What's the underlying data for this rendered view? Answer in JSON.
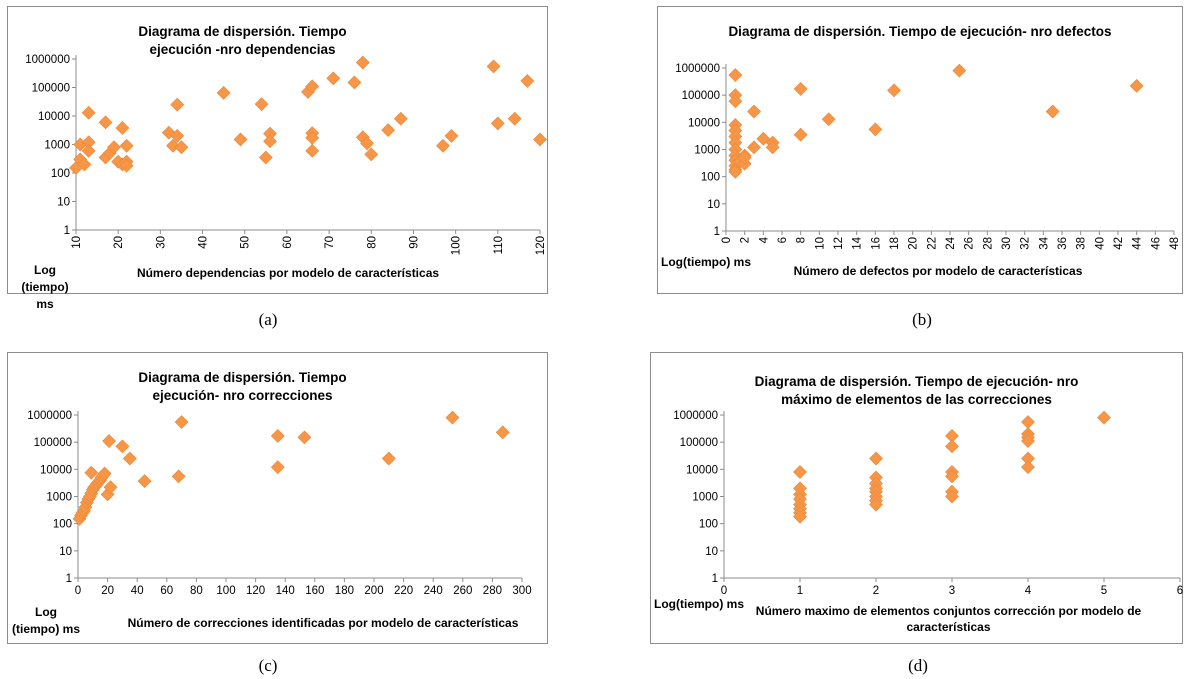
{
  "chart_data": [
    {
      "type": "scatter",
      "title": "Diagrama de dispersión. Tiempo ejecución -nro dependencias",
      "xlabel": "Número dependencias por modelo de características",
      "ylabel": "Log (tiempo) ms",
      "yscale": "log",
      "ylim": [
        1,
        1000000
      ],
      "xlim": [
        10,
        120
      ],
      "xticks": [
        "10",
        "20",
        "30",
        "40",
        "50",
        "60",
        "70",
        "80",
        "90",
        "100",
        "110",
        "120"
      ],
      "xtick_rotation": "vertical",
      "yticks": [
        "1",
        "10",
        "100",
        "1000",
        "10000",
        "100000",
        "1000000"
      ],
      "caption": "(a)",
      "points": [
        [
          10,
          150
        ],
        [
          11,
          1000
        ],
        [
          11,
          300
        ],
        [
          12,
          200
        ],
        [
          13,
          13000
        ],
        [
          13,
          1200
        ],
        [
          13,
          600
        ],
        [
          17,
          6000
        ],
        [
          17,
          350
        ],
        [
          18,
          500
        ],
        [
          19,
          800
        ],
        [
          20,
          250
        ],
        [
          21,
          200
        ],
        [
          21,
          3800
        ],
        [
          22,
          900
        ],
        [
          22,
          250
        ],
        [
          22,
          180
        ],
        [
          32,
          2600
        ],
        [
          33,
          900
        ],
        [
          34,
          2000
        ],
        [
          34,
          25000
        ],
        [
          35,
          800
        ],
        [
          45,
          65000
        ],
        [
          49,
          1500
        ],
        [
          54,
          26000
        ],
        [
          55,
          350
        ],
        [
          56,
          2400
        ],
        [
          56,
          1300
        ],
        [
          65,
          70000
        ],
        [
          66,
          110000
        ],
        [
          66,
          2500
        ],
        [
          66,
          1700
        ],
        [
          66,
          600
        ],
        [
          71,
          210000
        ],
        [
          76,
          150000
        ],
        [
          78,
          750000
        ],
        [
          78,
          1800
        ],
        [
          79,
          1100
        ],
        [
          80,
          450
        ],
        [
          84,
          3200
        ],
        [
          87,
          8000
        ],
        [
          97,
          900
        ],
        [
          99,
          2000
        ],
        [
          109,
          550000
        ],
        [
          110,
          5500
        ],
        [
          114,
          8000
        ],
        [
          117,
          170000
        ],
        [
          120,
          1500
        ]
      ]
    },
    {
      "type": "scatter",
      "title": "Diagrama de dispersión. Tiempo de ejecución- nro defectos",
      "xlabel": "Número de defectos por modelo de características",
      "ylabel": "Log(tiempo) ms",
      "yscale": "log",
      "ylim": [
        1,
        1000000
      ],
      "xlim": [
        0,
        48
      ],
      "xticks": [
        "0",
        "2",
        "4",
        "6",
        "8",
        "10",
        "12",
        "14",
        "16",
        "18",
        "20",
        "22",
        "24",
        "26",
        "28",
        "30",
        "32",
        "34",
        "36",
        "38",
        "40",
        "42",
        "44",
        "46",
        "48"
      ],
      "xtick_rotation": "vertical",
      "yticks": [
        "1",
        "10",
        "100",
        "1000",
        "10000",
        "100000",
        "1000000"
      ],
      "caption": "(b)",
      "points": [
        [
          1,
          550000
        ],
        [
          1,
          100000
        ],
        [
          1,
          60000
        ],
        [
          1,
          8000
        ],
        [
          1,
          5000
        ],
        [
          1,
          3000
        ],
        [
          1,
          1800
        ],
        [
          1,
          1000
        ],
        [
          1,
          600
        ],
        [
          1,
          400
        ],
        [
          1,
          250
        ],
        [
          1,
          180
        ],
        [
          1,
          150
        ],
        [
          1.5,
          350
        ],
        [
          2,
          300
        ],
        [
          2,
          600
        ],
        [
          2,
          500
        ],
        [
          3,
          25000
        ],
        [
          3,
          1200
        ],
        [
          4,
          2500
        ],
        [
          5,
          1800
        ],
        [
          5,
          1200
        ],
        [
          8,
          170000
        ],
        [
          8,
          3500
        ],
        [
          11,
          13000
        ],
        [
          16,
          5500
        ],
        [
          18,
          150000
        ],
        [
          25,
          800000
        ],
        [
          35,
          25000
        ],
        [
          44,
          220000
        ]
      ]
    },
    {
      "type": "scatter",
      "title": "Diagrama de dispersión. Tiempo ejecución- nro correcciones",
      "xlabel": "Número de correcciones identificadas  por modelo de características",
      "ylabel": "Log (tiempo) ms",
      "yscale": "log",
      "ylim": [
        1,
        1000000
      ],
      "xlim": [
        0,
        300
      ],
      "xticks": [
        "0",
        "20",
        "40",
        "60",
        "80",
        "100",
        "120",
        "140",
        "160",
        "180",
        "200",
        "220",
        "240",
        "260",
        "280",
        "300"
      ],
      "xtick_rotation": "horizontal",
      "yticks": [
        "1",
        "10",
        "100",
        "1000",
        "10000",
        "100000",
        "1000000"
      ],
      "caption": "(c)",
      "points": [
        [
          1,
          150
        ],
        [
          2,
          200
        ],
        [
          3,
          250
        ],
        [
          4,
          300
        ],
        [
          5,
          400
        ],
        [
          6,
          600
        ],
        [
          7,
          800
        ],
        [
          8,
          1000
        ],
        [
          9,
          1300
        ],
        [
          10,
          1800
        ],
        [
          11,
          2200
        ],
        [
          12,
          2500
        ],
        [
          13,
          3000
        ],
        [
          14,
          3500
        ],
        [
          15,
          4000
        ],
        [
          16,
          5000
        ],
        [
          17,
          6000
        ],
        [
          18,
          7000
        ],
        [
          9,
          7500
        ],
        [
          21,
          110000
        ],
        [
          20,
          1200
        ],
        [
          22,
          2200
        ],
        [
          30,
          70000
        ],
        [
          35,
          25000
        ],
        [
          45,
          3700
        ],
        [
          68,
          5500
        ],
        [
          70,
          550000
        ],
        [
          135,
          170000
        ],
        [
          135,
          12000
        ],
        [
          153,
          150000
        ],
        [
          210,
          25000
        ],
        [
          253,
          800000
        ],
        [
          287,
          230000
        ]
      ]
    },
    {
      "type": "scatter",
      "title": "Diagrama de dispersión. Tiempo de ejecución-  nro máximo de elementos de las correcciones",
      "xlabel": "Número maximo de elementos conjuntos corrección por modelo de características",
      "ylabel": "Log(tiempo) ms",
      "yscale": "log",
      "ylim": [
        1,
        1000000
      ],
      "xlim": [
        0,
        6
      ],
      "xticks": [
        "0",
        "1",
        "2",
        "3",
        "4",
        "5",
        "6"
      ],
      "xtick_rotation": "horizontal",
      "yticks": [
        "1",
        "10",
        "100",
        "1000",
        "10000",
        "100000",
        "1000000"
      ],
      "caption": "(d)",
      "points": [
        [
          1,
          8000
        ],
        [
          1,
          2000
        ],
        [
          1,
          1200
        ],
        [
          1,
          800
        ],
        [
          1,
          500
        ],
        [
          1,
          350
        ],
        [
          1,
          250
        ],
        [
          1,
          180
        ],
        [
          2,
          25000
        ],
        [
          2,
          5000
        ],
        [
          2,
          3000
        ],
        [
          2,
          2000
        ],
        [
          2,
          1500
        ],
        [
          2,
          1000
        ],
        [
          2,
          700
        ],
        [
          2,
          500
        ],
        [
          3,
          170000
        ],
        [
          3,
          70000
        ],
        [
          3,
          8000
        ],
        [
          3,
          5500
        ],
        [
          3,
          1500
        ],
        [
          3,
          1000
        ],
        [
          4,
          550000
        ],
        [
          4,
          200000
        ],
        [
          4,
          150000
        ],
        [
          4,
          110000
        ],
        [
          4,
          25000
        ],
        [
          4,
          12000
        ],
        [
          5,
          800000
        ]
      ]
    }
  ]
}
